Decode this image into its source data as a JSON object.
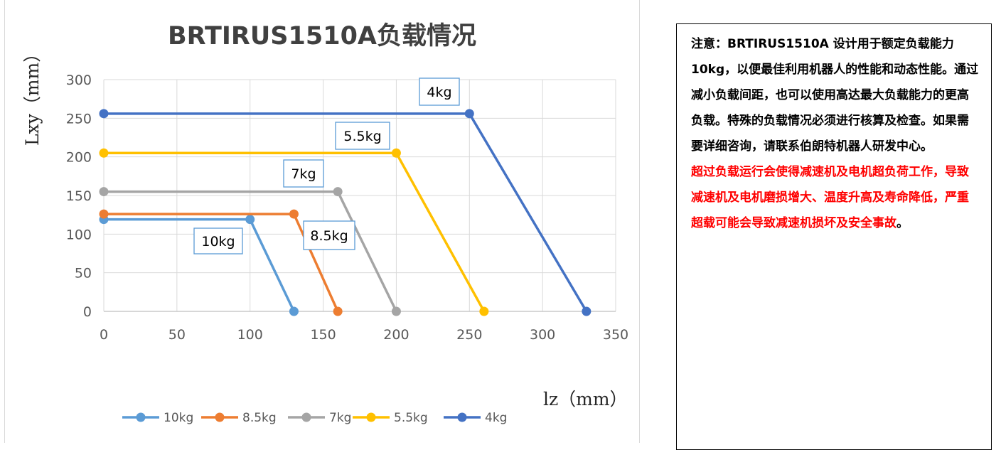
{
  "chart_data": {
    "type": "line",
    "title": "BRTIRUS1510A负载情况",
    "xlabel": "lz（mm）",
    "ylabel": "Lxy（mm）",
    "xlim": [
      0,
      350
    ],
    "ylim": [
      0,
      300
    ],
    "xticks": [
      0,
      50,
      100,
      150,
      200,
      250,
      300,
      350
    ],
    "yticks": [
      0,
      50,
      100,
      150,
      200,
      250,
      300
    ],
    "grid": true,
    "legend_position": "bottom",
    "series": [
      {
        "name": "10kg",
        "color": "#5b9bd5",
        "points": [
          [
            0,
            119
          ],
          [
            100,
            119
          ],
          [
            130,
            0
          ]
        ]
      },
      {
        "name": "8.5kg",
        "color": "#ed7d31",
        "points": [
          [
            0,
            126
          ],
          [
            130,
            126
          ],
          [
            160,
            0
          ]
        ]
      },
      {
        "name": "7kg",
        "color": "#a5a5a5",
        "points": [
          [
            0,
            155
          ],
          [
            160,
            155
          ],
          [
            200,
            0
          ]
        ]
      },
      {
        "name": "5.5kg",
        "color": "#ffc000",
        "points": [
          [
            0,
            205
          ],
          [
            200,
            205
          ],
          [
            260,
            0
          ]
        ]
      },
      {
        "name": "4kg",
        "color": "#4472c4",
        "points": [
          [
            0,
            256
          ],
          [
            250,
            256
          ],
          [
            330,
            0
          ]
        ]
      }
    ],
    "annotations": [
      "4kg",
      "5.5kg",
      "7kg",
      "10kg",
      "8.5kg"
    ]
  },
  "note": {
    "text": "注意：BRTIRUS1510A 设计用于额定负载能力10kg，以便最佳利用机器人的性能和动态性能。通过减小负载间距，也可以使用高达最大负载能力的更高负载。特殊的负载情况必须进行核算及检查。如果需要详细咨询，请联系伯朗特机器人研发中心。",
    "warning": "超过负载运行会使得减速机及电机超负荷工作，导致减速机及电机磨损增大、温度升高及寿命降低，严重超载可能会导致减速机损坏及安全事故",
    "warning_end": "。"
  }
}
